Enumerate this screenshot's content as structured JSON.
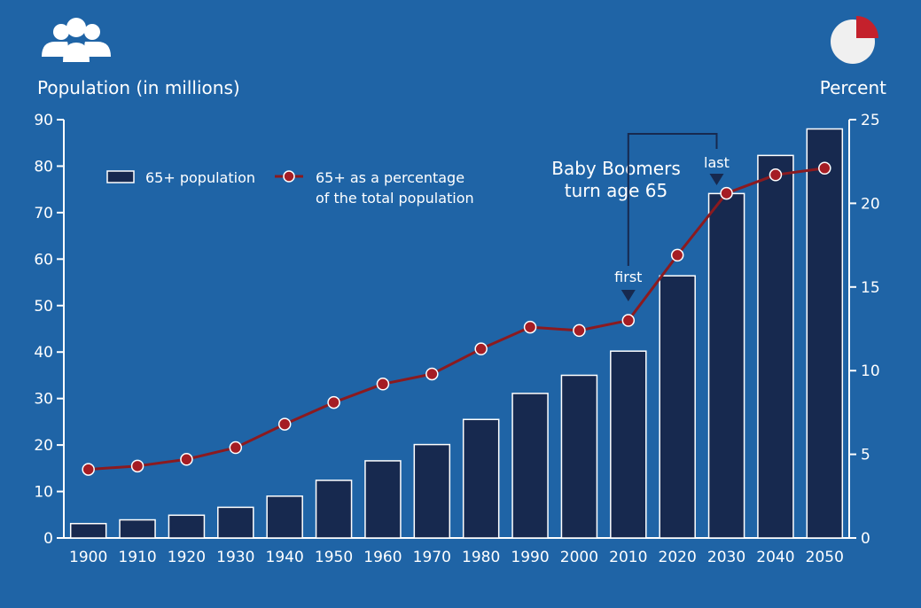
{
  "colors": {
    "background": "#1f64a6",
    "bar_fill": "#17294f",
    "bar_stroke": "#ffffff",
    "line": "#8b1a1f",
    "marker": "#a51d24",
    "pie_accent": "#c4212c",
    "text": "#ffffff"
  },
  "icons": {
    "left": "people-icon",
    "right": "pie-chart-icon"
  },
  "chart_data": {
    "type": "bar",
    "title": "",
    "xlabel": "",
    "ylabel": "Population (in millions)",
    "ylabel_right": "Percent",
    "categories": [
      "1900",
      "1910",
      "1920",
      "1930",
      "1940",
      "1950",
      "1960",
      "1970",
      "1980",
      "1990",
      "2000",
      "2010",
      "2020",
      "2030",
      "2040",
      "2050"
    ],
    "ylim": [
      0,
      90
    ],
    "y_ticks": [
      "0",
      "10",
      "20",
      "30",
      "40",
      "50",
      "60",
      "70",
      "80",
      "90"
    ],
    "ylim_right": [
      0,
      25
    ],
    "y_ticks_right": [
      "0",
      "5",
      "10",
      "15",
      "20",
      "25"
    ],
    "series": [
      {
        "name": "65+ population",
        "type": "bar",
        "axis": "left",
        "values": [
          3.1,
          3.9,
          4.9,
          6.6,
          9.0,
          12.4,
          16.6,
          20.1,
          25.5,
          31.1,
          35.0,
          40.2,
          56.4,
          74.1,
          82.3,
          88.0
        ]
      },
      {
        "name": "65+ as a percentage of the total population",
        "type": "line",
        "axis": "right",
        "values": [
          4.1,
          4.3,
          4.7,
          5.4,
          6.8,
          8.1,
          9.2,
          9.8,
          11.3,
          12.6,
          12.4,
          13.0,
          16.9,
          20.6,
          21.7,
          22.1
        ]
      }
    ],
    "legend": {
      "bar_label": "65+ population",
      "line_label_1": "65+ as a percentage",
      "line_label_2": "of the total population",
      "placement": "top-left"
    },
    "annotations": {
      "boomers_1": "Baby Boomers",
      "boomers_2": "turn age 65",
      "first": "first",
      "last": "last",
      "first_x": 2010,
      "last_x": 2028
    },
    "grid": false
  }
}
